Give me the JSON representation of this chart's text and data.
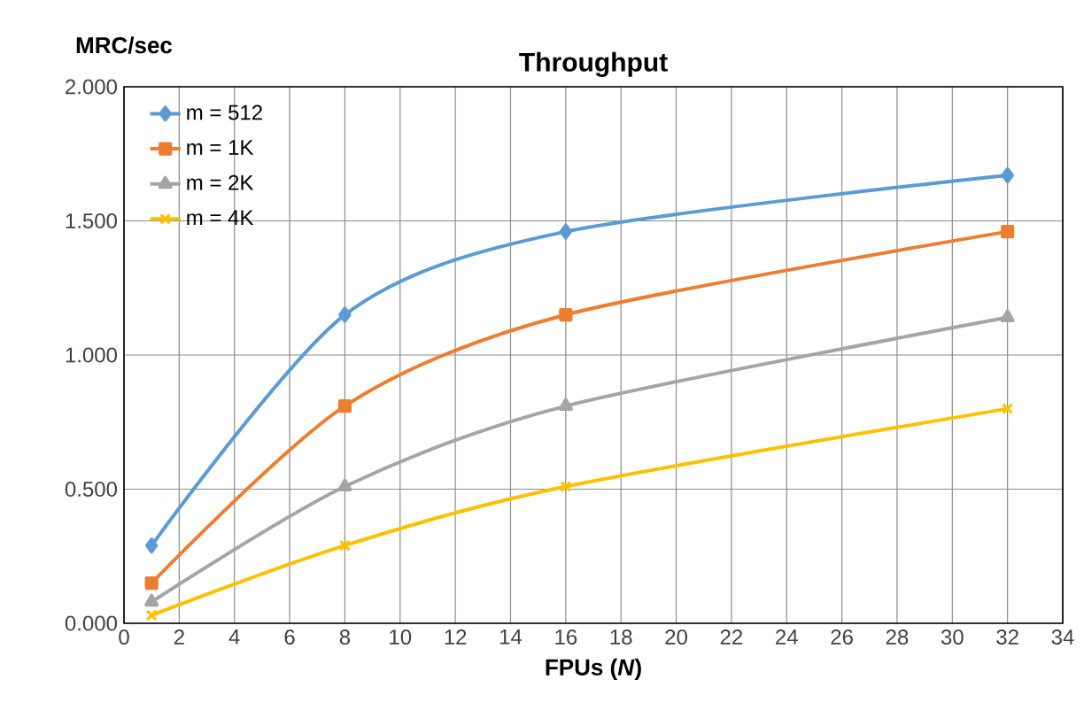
{
  "chart_data": {
    "type": "line",
    "title": "Throughput",
    "xlabel": "FPUs (*N*)",
    "ylabel": "MRC/sec",
    "x": [
      1,
      8,
      16,
      32
    ],
    "series": [
      {
        "name": "m = 512",
        "color": "#5b9bd5",
        "marker": "diamond",
        "values": [
          0.29,
          1.15,
          1.46,
          1.67
        ]
      },
      {
        "name": "m = 1K",
        "color": "#ed7d31",
        "marker": "square",
        "values": [
          0.15,
          0.81,
          1.15,
          1.46
        ]
      },
      {
        "name": "m = 2K",
        "color": "#a5a5a5",
        "marker": "triangle",
        "values": [
          0.08,
          0.51,
          0.81,
          1.14
        ]
      },
      {
        "name": "m = 4K",
        "color": "#ffc000",
        "marker": "cross",
        "values": [
          0.03,
          0.29,
          0.51,
          0.8
        ]
      }
    ],
    "xlim": [
      0,
      34
    ],
    "xticks": [
      0,
      2,
      4,
      6,
      8,
      10,
      12,
      14,
      16,
      18,
      20,
      22,
      24,
      26,
      28,
      30,
      32,
      34
    ],
    "ylim": [
      0,
      2
    ],
    "yticks": [
      {
        "value": 0,
        "label": "0.000"
      },
      {
        "value": 0.5,
        "label": "0.500"
      },
      {
        "value": 1,
        "label": "1.000"
      },
      {
        "value": 1.5,
        "label": "1.500"
      },
      {
        "value": 2,
        "label": "2.000"
      }
    ],
    "grid": true,
    "legend": "top left"
  }
}
